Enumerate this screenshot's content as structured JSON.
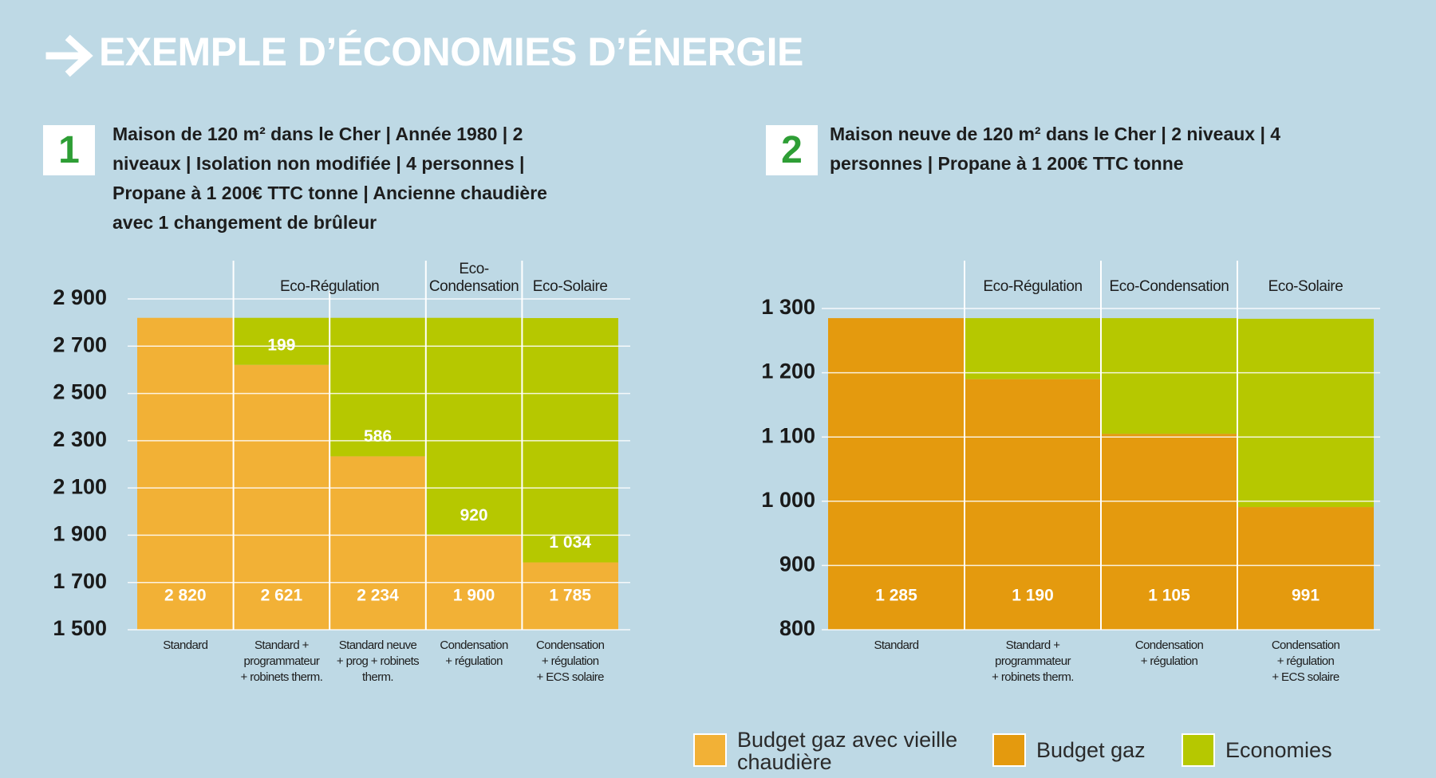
{
  "header": {
    "title": "EXEMPLE D’ÉCONOMIES D’ÉNERGIE"
  },
  "chart_data": [
    {
      "type": "bar",
      "panel": "1",
      "subtitle": "Maison de 120 m² dans le Cher | Année 1980 | 2 niveaux | Isolation non modifiée | 4 personnes | Propane à 1 200€ TTC tonne | Ancienne chaudière avec 1 changement de brûleur",
      "categories": [
        "Standard",
        "Standard +\nprogrammateur\n+ robinets therm.",
        "Standard neuve\n+ prog + robinets\ntherm.",
        "Condensation\n+ régulation",
        "Condensation\n+ régulation\n+ ECS solaire"
      ],
      "groups": [
        null,
        "Eco-Régulation",
        null,
        "Eco-\nCondensation",
        "Eco-Solaire"
      ],
      "series": [
        {
          "name": "Budget gaz avec vieille chaudière",
          "color": "#f2b136",
          "values": [
            2820,
            2621,
            2234,
            1900,
            1785
          ],
          "value_labels": [
            "2 820",
            "2 621",
            "2 234",
            "1 900",
            "1 785"
          ]
        },
        {
          "name": "Economies",
          "color": "#b6c800",
          "values": [
            null,
            199,
            586,
            920,
            1034
          ],
          "value_labels": [
            null,
            "199",
            "586",
            "920",
            "1 034"
          ]
        }
      ],
      "ylim": [
        1500,
        2900
      ],
      "yticks": [
        {
          "value": 1500,
          "label": "1 500"
        },
        {
          "value": 1700,
          "label": "1 700"
        },
        {
          "value": 1900,
          "label": "1 900"
        },
        {
          "value": 2100,
          "label": "2 100"
        },
        {
          "value": 2300,
          "label": "2 300"
        },
        {
          "value": 2500,
          "label": "2 500"
        },
        {
          "value": 2700,
          "label": "2 700"
        },
        {
          "value": 2900,
          "label": "2 900"
        }
      ],
      "grid": true
    },
    {
      "type": "bar",
      "panel": "2",
      "subtitle": "Maison neuve de 120 m² dans le Cher | 2 niveaux | 4 personnes | Propane à 1 200€ TTC tonne",
      "categories": [
        "Standard",
        "Standard +\nprogrammateur\n+ robinets therm.",
        "Condensation\n+ régulation",
        "Condensation\n+ régulation\n+ ECS solaire"
      ],
      "groups": [
        null,
        "Eco-Régulation",
        "Eco-Condensation",
        "Eco-Solaire"
      ],
      "series": [
        {
          "name": "Budget gaz",
          "color": "#e49a0e",
          "values": [
            1285,
            1190,
            1105,
            991
          ],
          "value_labels": [
            "1 285",
            "1 190",
            "1 105",
            "991"
          ]
        },
        {
          "color": "#b6c800",
          "values": [
            null,
            95,
            180,
            293
          ]
        }
      ],
      "ylim": [
        800,
        1300
      ],
      "yticks": [
        800,
        900,
        {
          "value": 1000,
          "label": "1 000"
        },
        {
          "value": 1100,
          "label": "1 100"
        },
        {
          "value": 1200,
          "label": "1 200"
        },
        {
          "value": 1300,
          "label": "1 300"
        }
      ],
      "grid": true
    }
  ]
}
